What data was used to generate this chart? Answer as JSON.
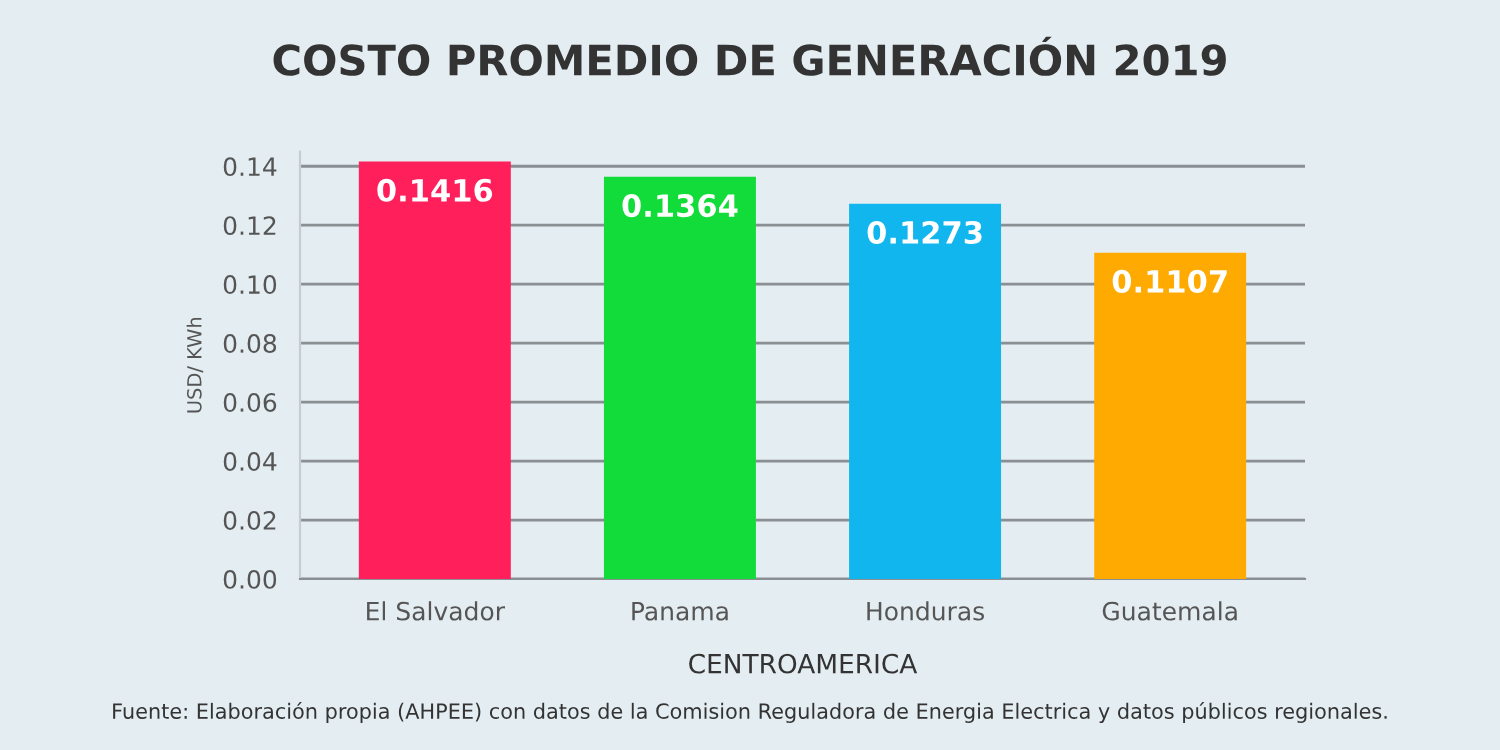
{
  "chart_data": {
    "type": "bar",
    "title": "COSTO PROMEDIO DE GENERACIÓN 2019",
    "xlabel": "CENTROAMERICA",
    "ylabel": "USD/ KWh",
    "categories": [
      "El Salvador",
      "Panama",
      "Honduras",
      "Guatemala"
    ],
    "values": [
      0.1416,
      0.1364,
      0.1273,
      0.1107
    ],
    "colors": [
      "#ff1f5a",
      "#12dc3a",
      "#12b6ee",
      "#ffaa00"
    ],
    "ylim": [
      0,
      0.145
    ],
    "yticks": [
      {
        "value": 0,
        "label": "0.00"
      },
      {
        "value": 0.02,
        "label": "0.02"
      },
      {
        "value": 0.04,
        "label": "0.04"
      },
      {
        "value": 0.06,
        "label": "0.06"
      },
      {
        "value": 0.08,
        "label": "0.08"
      },
      {
        "value": 0.1,
        "label": "0.10"
      },
      {
        "value": 0.12,
        "label": "0.12"
      },
      {
        "value": 0.14,
        "label": "0.14"
      }
    ],
    "grid": "y",
    "data_labels": true,
    "annotations": [
      "Fuente: Elaboración propia (AHPEE) con datos de la Comision Reguladora de Energia Electrica y datos públicos regionales."
    ]
  }
}
